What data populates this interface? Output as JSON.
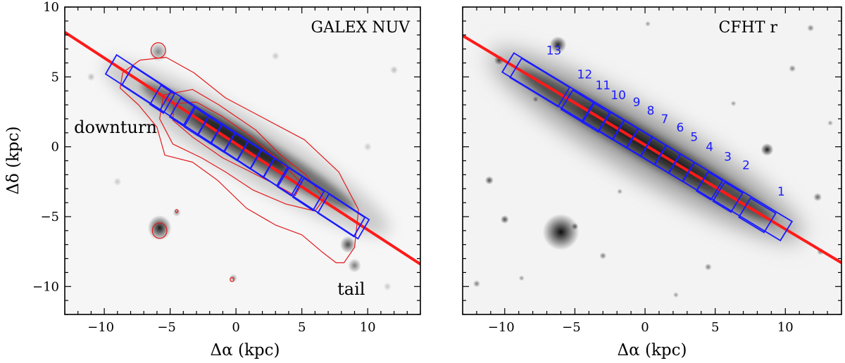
{
  "figure": {
    "x_axis_label": "Δα (kpc)",
    "y_axis_label": "Δδ (kpc)"
  },
  "colors": {
    "major_axis_line": "#ff1a1a",
    "contour": "#e31a1c",
    "boxes": "#1a1aff",
    "bin_labels": "#1a1aff"
  },
  "chart_data": [
    {
      "type": "image",
      "title": "GALEX NUV",
      "xlabel": "Δα (kpc)",
      "ylabel": "Δδ (kpc)",
      "xlim": [
        -13,
        14
      ],
      "ylim": [
        -12,
        10
      ],
      "xticks": [
        -10,
        -5,
        0,
        5,
        10
      ],
      "yticks": [
        -10,
        -5,
        0,
        5,
        10
      ],
      "annotations": [
        {
          "text": "downturn",
          "x": -12.3,
          "y": 1.0
        },
        {
          "text": "tail",
          "x": 7.7,
          "y": -10.6
        }
      ],
      "major_axis": {
        "x1": -13,
        "y1": 8.2,
        "x2": 14,
        "y2": -8.4
      },
      "large_box": {
        "center": [
          0.1,
          0.0
        ],
        "length": 22.5,
        "width": 1.6,
        "angle_deg": -31.6
      },
      "bins": [
        {
          "center": [
            -6.8,
            4.2
          ],
          "length": 3.4,
          "width": 1.6
        },
        {
          "center": [
            -5.6,
            3.4
          ],
          "length": 1.2,
          "width": 1.6
        },
        {
          "center": [
            -4.1,
            2.5
          ],
          "length": 1.2,
          "width": 1.6
        },
        {
          "center": [
            -3.0,
            1.8
          ],
          "length": 1.2,
          "width": 1.6
        },
        {
          "center": [
            -2.0,
            1.2
          ],
          "length": 1.2,
          "width": 1.6
        },
        {
          "center": [
            -1.0,
            0.6
          ],
          "length": 1.2,
          "width": 1.6
        },
        {
          "center": [
            0.0,
            0.0
          ],
          "length": 1.2,
          "width": 1.6
        },
        {
          "center": [
            1.0,
            -0.6
          ],
          "length": 1.2,
          "width": 1.6
        },
        {
          "center": [
            2.0,
            -1.2
          ],
          "length": 1.2,
          "width": 1.6
        },
        {
          "center": [
            3.0,
            -1.8
          ],
          "length": 1.2,
          "width": 1.6
        },
        {
          "center": [
            4.1,
            -2.5
          ],
          "length": 1.2,
          "width": 1.6
        },
        {
          "center": [
            5.5,
            -3.4
          ],
          "length": 1.8,
          "width": 1.6
        },
        {
          "center": [
            8.0,
            -4.9
          ],
          "length": 3.2,
          "width": 1.6
        }
      ],
      "sources": [
        {
          "x": -5.9,
          "y": 6.8,
          "s": 0.7,
          "o": 0.45
        },
        {
          "x": -5.8,
          "y": -5.8,
          "s": 0.9,
          "o": 0.9
        },
        {
          "x": -4.5,
          "y": -4.7,
          "s": 0.3,
          "o": 0.4
        },
        {
          "x": -0.2,
          "y": -9.4,
          "s": 0.3,
          "o": 0.4
        },
        {
          "x": 8.5,
          "y": -7.0,
          "s": 0.6,
          "o": 0.7
        },
        {
          "x": 9.0,
          "y": -8.5,
          "s": 0.5,
          "o": 0.5
        },
        {
          "x": -11.0,
          "y": 5.0,
          "s": 0.3,
          "o": 0.25
        },
        {
          "x": 12.0,
          "y": 5.5,
          "s": 0.3,
          "o": 0.25
        },
        {
          "x": 10.0,
          "y": 0.0,
          "s": 0.3,
          "o": 0.2
        },
        {
          "x": -9.0,
          "y": -2.5,
          "s": 0.3,
          "o": 0.2
        },
        {
          "x": 11.5,
          "y": -10.0,
          "s": 0.3,
          "o": 0.2
        },
        {
          "x": 3.0,
          "y": 6.5,
          "s": 0.3,
          "o": 0.2
        }
      ],
      "contours": [
        [
          [
            -8.6,
            5.3
          ],
          [
            -7.3,
            6.2
          ],
          [
            -5.3,
            6.4
          ],
          [
            -3.2,
            5.3
          ],
          [
            -0.8,
            3.5
          ],
          [
            2.2,
            2.0
          ],
          [
            5.2,
            0.5
          ],
          [
            7.8,
            -1.8
          ],
          [
            9.3,
            -4.5
          ],
          [
            9.0,
            -7.2
          ],
          [
            8.2,
            -8.3
          ],
          [
            7.6,
            -8.3
          ],
          [
            6.5,
            -7.5
          ],
          [
            5.0,
            -6.3
          ],
          [
            3.0,
            -5.6
          ],
          [
            0.8,
            -4.4
          ],
          [
            -1.4,
            -2.4
          ],
          [
            -3.3,
            -1.1
          ],
          [
            -5.4,
            -0.6
          ],
          [
            -6.0,
            1.4
          ],
          [
            -7.4,
            3.0
          ],
          [
            -8.8,
            4.2
          ]
        ],
        [
          [
            -5.5,
            3.7
          ],
          [
            -3.3,
            4.1
          ],
          [
            -1.3,
            3.0
          ],
          [
            1.5,
            1.2
          ],
          [
            3.4,
            -0.6
          ],
          [
            5.3,
            -2.0
          ],
          [
            6.7,
            -3.7
          ],
          [
            6.0,
            -4.6
          ],
          [
            3.8,
            -4.1
          ],
          [
            1.3,
            -3.1
          ],
          [
            -0.8,
            -1.8
          ],
          [
            -2.6,
            -0.8
          ],
          [
            -4.8,
            0.2
          ],
          [
            -5.8,
            2.0
          ]
        ],
        [
          [
            -4.7,
            3.1
          ],
          [
            -3.0,
            3.2
          ],
          [
            -1.1,
            2.2
          ],
          [
            1.2,
            0.7
          ],
          [
            3.4,
            -1.1
          ],
          [
            5.0,
            -2.6
          ],
          [
            4.5,
            -3.5
          ],
          [
            2.8,
            -2.6
          ],
          [
            0.9,
            -1.7
          ],
          [
            -1.0,
            -0.8
          ],
          [
            -3.3,
            0.7
          ],
          [
            -4.8,
            1.9
          ]
        ]
      ],
      "small_contours": [
        {
          "x": -5.8,
          "y": -6.0,
          "r": 0.55
        },
        {
          "x": -5.9,
          "y": 6.9,
          "r": 0.55
        },
        {
          "x": -4.5,
          "y": -4.6,
          "r": 0.1
        },
        {
          "x": -0.3,
          "y": -9.5,
          "r": 0.15
        }
      ]
    },
    {
      "type": "image",
      "title": "CFHT r",
      "xlabel": "Δα (kpc)",
      "xlim": [
        -13,
        14
      ],
      "ylim": [
        -12,
        10
      ],
      "xticks": [
        -10,
        -5,
        0,
        5,
        10
      ],
      "yticks": [
        -10,
        -5,
        0,
        5,
        10
      ],
      "major_axis": {
        "x1": -13,
        "y1": 7.95,
        "x2": 14,
        "y2": -8.3
      },
      "large_box": {
        "center": [
          0.15,
          0.0
        ],
        "length": 23.2,
        "width": 1.6,
        "angle_deg": -31.3
      },
      "bins": [
        {
          "label": "1",
          "label_x": 9.7,
          "label_y": -3.5,
          "center": [
            8.0,
            -4.9
          ],
          "length": 2.1,
          "width": 1.6
        },
        {
          "label": "2",
          "label_x": 7.2,
          "label_y": -1.6,
          "center": [
            5.9,
            -3.6
          ],
          "length": 1.5,
          "width": 1.6
        },
        {
          "label": "3",
          "label_x": 5.9,
          "label_y": -1.0,
          "center": [
            4.6,
            -2.8
          ],
          "length": 1.2,
          "width": 1.6
        },
        {
          "label": "4",
          "label_x": 4.6,
          "label_y": -0.3,
          "center": [
            3.6,
            -2.1
          ],
          "length": 1.2,
          "width": 1.6
        },
        {
          "label": "5",
          "label_x": 3.5,
          "label_y": 0.4,
          "center": [
            2.6,
            -1.5
          ],
          "length": 1.2,
          "width": 1.6
        },
        {
          "label": "6",
          "label_x": 2.5,
          "label_y": 1.1,
          "center": [
            1.6,
            -0.9
          ],
          "length": 1.2,
          "width": 1.6
        },
        {
          "label": "7",
          "label_x": 1.4,
          "label_y": 1.7,
          "center": [
            0.6,
            -0.3
          ],
          "length": 1.2,
          "width": 1.6
        },
        {
          "label": "8",
          "label_x": 0.4,
          "label_y": 2.3,
          "center": [
            -0.4,
            0.3
          ],
          "length": 1.2,
          "width": 1.6
        },
        {
          "label": "9",
          "label_x": -0.6,
          "label_y": 2.9,
          "center": [
            -1.4,
            0.9
          ],
          "length": 1.2,
          "width": 1.6
        },
        {
          "label": "10",
          "label_x": -1.9,
          "label_y": 3.4,
          "center": [
            -2.4,
            1.5
          ],
          "length": 1.2,
          "width": 1.6
        },
        {
          "label": "11",
          "label_x": -3.0,
          "label_y": 4.1,
          "center": [
            -3.5,
            2.1
          ],
          "length": 1.4,
          "width": 1.6
        },
        {
          "label": "12",
          "label_x": -4.3,
          "label_y": 4.9,
          "center": [
            -4.8,
            2.9
          ],
          "length": 1.8,
          "width": 1.6
        },
        {
          "label": "13",
          "label_x": -6.5,
          "label_y": 6.6,
          "center": [
            -7.5,
            4.6
          ],
          "length": 4.0,
          "width": 1.6
        }
      ],
      "sources": [
        {
          "x": -6.0,
          "y": -6.1,
          "s": 1.3,
          "o": 0.95
        },
        {
          "x": -6.2,
          "y": 7.3,
          "s": 0.6,
          "o": 0.85
        },
        {
          "x": 8.7,
          "y": -0.2,
          "s": 0.45,
          "o": 0.9
        },
        {
          "x": -10.4,
          "y": 6.2,
          "s": 0.35,
          "o": 0.7
        },
        {
          "x": -11.1,
          "y": -2.4,
          "s": 0.3,
          "o": 0.7
        },
        {
          "x": -10.0,
          "y": -5.2,
          "s": 0.3,
          "o": 0.7
        },
        {
          "x": -5.0,
          "y": -5.7,
          "s": 0.25,
          "o": 0.6
        },
        {
          "x": -7.8,
          "y": 3.4,
          "s": 0.2,
          "o": 0.5
        },
        {
          "x": 12.3,
          "y": -3.6,
          "s": 0.3,
          "o": 0.6
        },
        {
          "x": 12.5,
          "y": -7.5,
          "s": 0.25,
          "o": 0.5
        },
        {
          "x": 11.8,
          "y": 8.5,
          "s": 0.25,
          "o": 0.5
        },
        {
          "x": -3.0,
          "y": -7.8,
          "s": 0.25,
          "o": 0.5
        },
        {
          "x": 4.5,
          "y": -8.6,
          "s": 0.25,
          "o": 0.5
        },
        {
          "x": 10.5,
          "y": 5.6,
          "s": 0.25,
          "o": 0.5
        },
        {
          "x": -12.0,
          "y": -9.8,
          "s": 0.25,
          "o": 0.5
        },
        {
          "x": 0.2,
          "y": 8.8,
          "s": 0.2,
          "o": 0.4
        },
        {
          "x": 6.3,
          "y": 3.1,
          "s": 0.2,
          "o": 0.4
        },
        {
          "x": -8.8,
          "y": -9.4,
          "s": 0.2,
          "o": 0.4
        },
        {
          "x": 2.2,
          "y": -10.6,
          "s": 0.2,
          "o": 0.4
        },
        {
          "x": 13.2,
          "y": 1.7,
          "s": 0.2,
          "o": 0.4
        },
        {
          "x": -1.8,
          "y": -3.2,
          "s": 0.2,
          "o": 0.4
        }
      ]
    }
  ]
}
